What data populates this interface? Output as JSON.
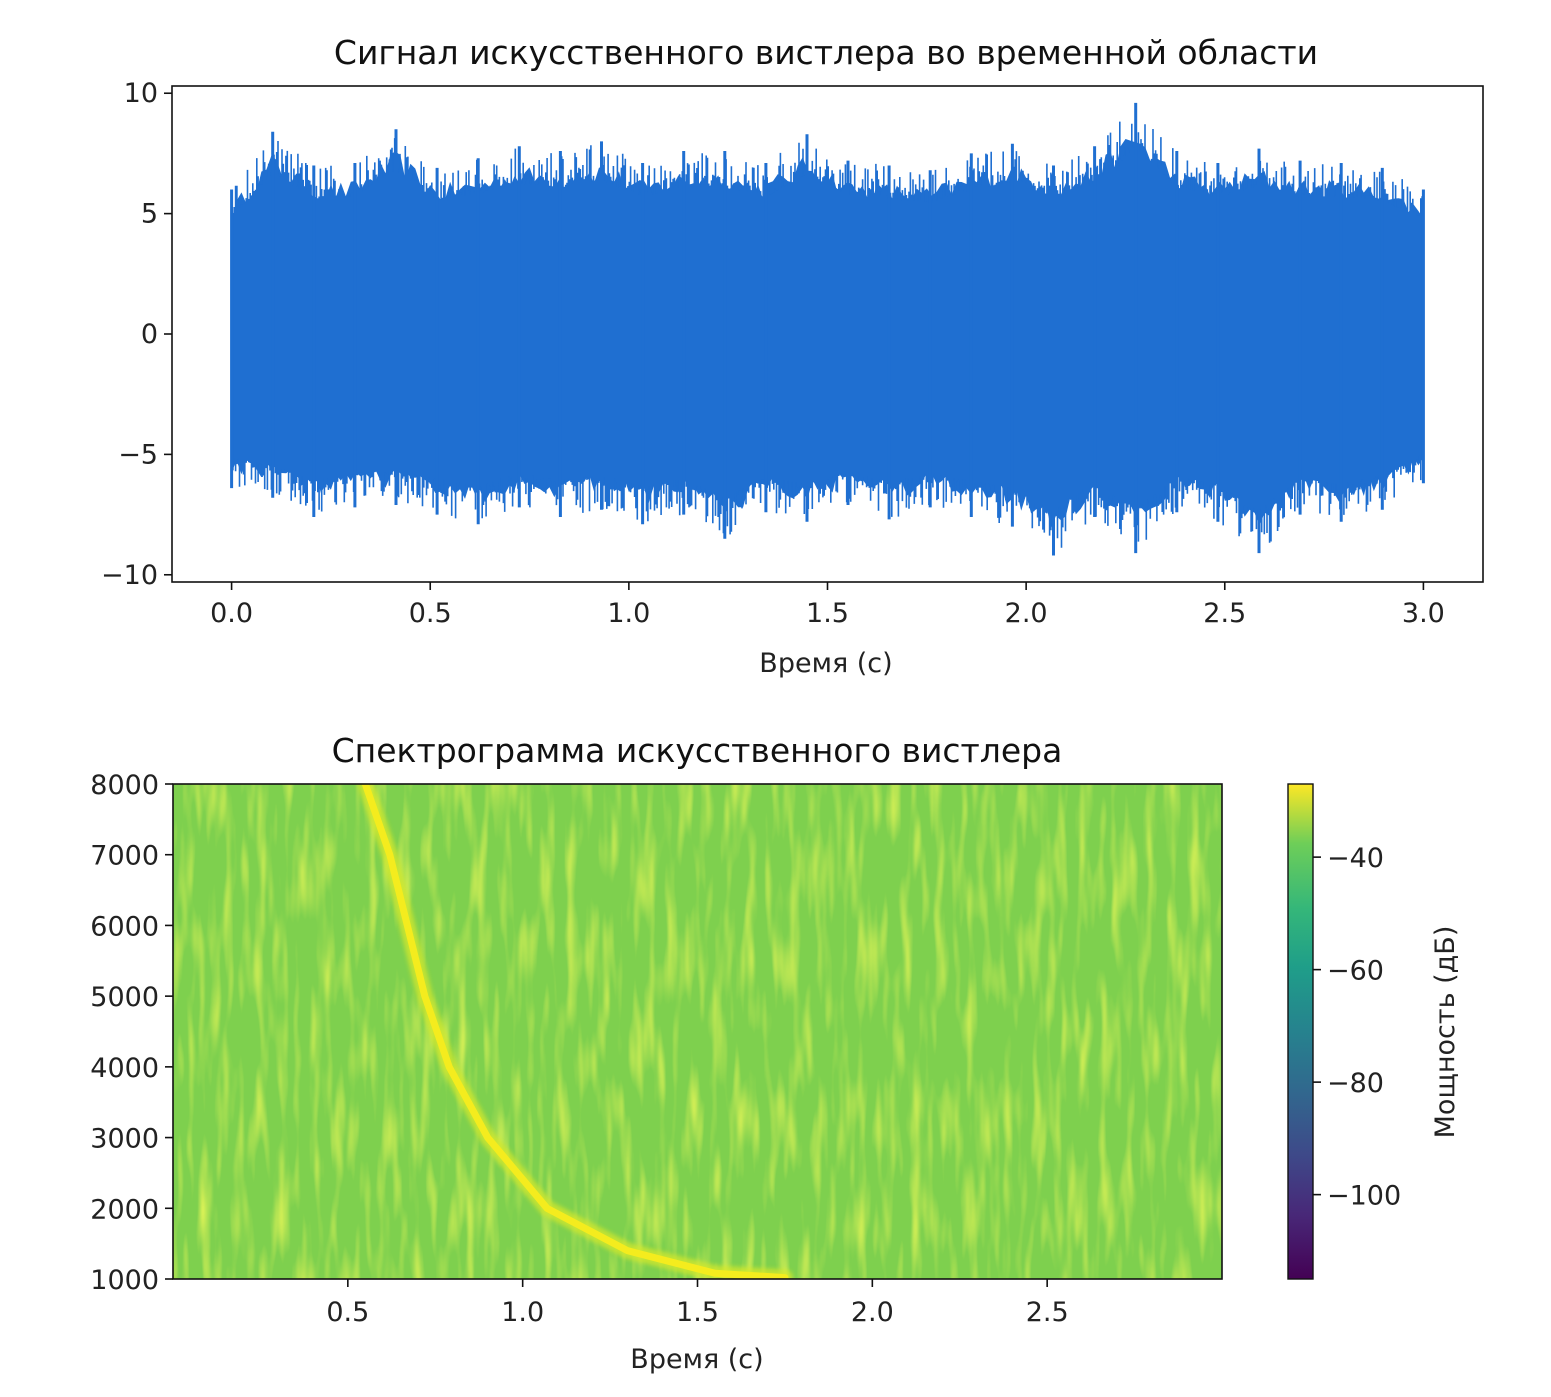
{
  "chart_data": [
    {
      "type": "line",
      "title": "Сигнал искусственного вистлера во временной области",
      "xlabel": "Время (с)",
      "ylabel": "",
      "xlim": [
        -0.15,
        3.15
      ],
      "ylim": [
        -10.3,
        10.3
      ],
      "xticks": [
        0.0,
        0.5,
        1.0,
        1.5,
        2.0,
        2.5,
        3.0
      ],
      "xtick_labels": [
        "0.0",
        "0.5",
        "1.0",
        "1.5",
        "2.0",
        "2.5",
        "3.0"
      ],
      "yticks": [
        10,
        5,
        0,
        -5,
        -10
      ],
      "ytick_labels": [
        "10",
        "5",
        "0",
        "−5",
        "−10"
      ],
      "series": [
        {
          "color": "#1f6fd1",
          "x_range": [
            0.0,
            3.0
          ],
          "envelope_upper": [
            6.0,
            8.4,
            7.0,
            7.1,
            8.5,
            6.9,
            7.3,
            7.8,
            7.6,
            8.0,
            7.1,
            7.6,
            7.6,
            7.1,
            8.3,
            7.2,
            7.0,
            6.8,
            7.5,
            7.9,
            7.0,
            7.8,
            9.6,
            7.6,
            7.1,
            7.7,
            7.2,
            7.1,
            6.9,
            6.0
          ],
          "envelope_lower": [
            -6.4,
            -6.8,
            -7.6,
            -7.2,
            -7.1,
            -7.5,
            -7.9,
            -7.2,
            -7.6,
            -7.3,
            -7.9,
            -7.5,
            -8.5,
            -7.4,
            -7.8,
            -7.1,
            -7.7,
            -7.2,
            -7.6,
            -8.0,
            -9.2,
            -7.6,
            -9.1,
            -7.4,
            -7.8,
            -9.1,
            -7.5,
            -7.8,
            -7.3,
            -6.2
          ]
        }
      ]
    },
    {
      "type": "heatmap",
      "title": "Спектрограмма искусственного вистлера",
      "xlabel": "Время (с)",
      "ylabel": "",
      "xlim": [
        0.0,
        3.0
      ],
      "ylim": [
        1000,
        8000
      ],
      "xticks": [
        0.5,
        1.0,
        1.5,
        2.0,
        2.5
      ],
      "xtick_labels": [
        "0.5",
        "1.0",
        "1.5",
        "2.0",
        "2.5"
      ],
      "yticks": [
        8000,
        7000,
        6000,
        5000,
        4000,
        3000,
        2000,
        1000
      ],
      "ytick_labels": [
        "8000",
        "7000",
        "6000",
        "5000",
        "4000",
        "3000",
        "2000",
        "1000"
      ],
      "colormap": "viridis",
      "background_power_db": -45,
      "whistler_curve": {
        "description": "",
        "points": [
          [
            0.55,
            8000
          ],
          [
            0.62,
            7000
          ],
          [
            0.67,
            6000
          ],
          [
            0.72,
            5000
          ],
          [
            0.79,
            4000
          ],
          [
            0.9,
            3000
          ],
          [
            1.07,
            2000
          ],
          [
            1.3,
            1400
          ],
          [
            1.55,
            1080
          ],
          [
            1.75,
            1020
          ]
        ],
        "power_db": -28
      },
      "colorbar": {
        "label": "Мощность (дБ)",
        "range": [
          -115,
          -27
        ],
        "ticks": [
          -40,
          -60,
          -80,
          -100
        ],
        "tick_labels": [
          "−40",
          "−60",
          "−80",
          "−100"
        ]
      }
    }
  ]
}
